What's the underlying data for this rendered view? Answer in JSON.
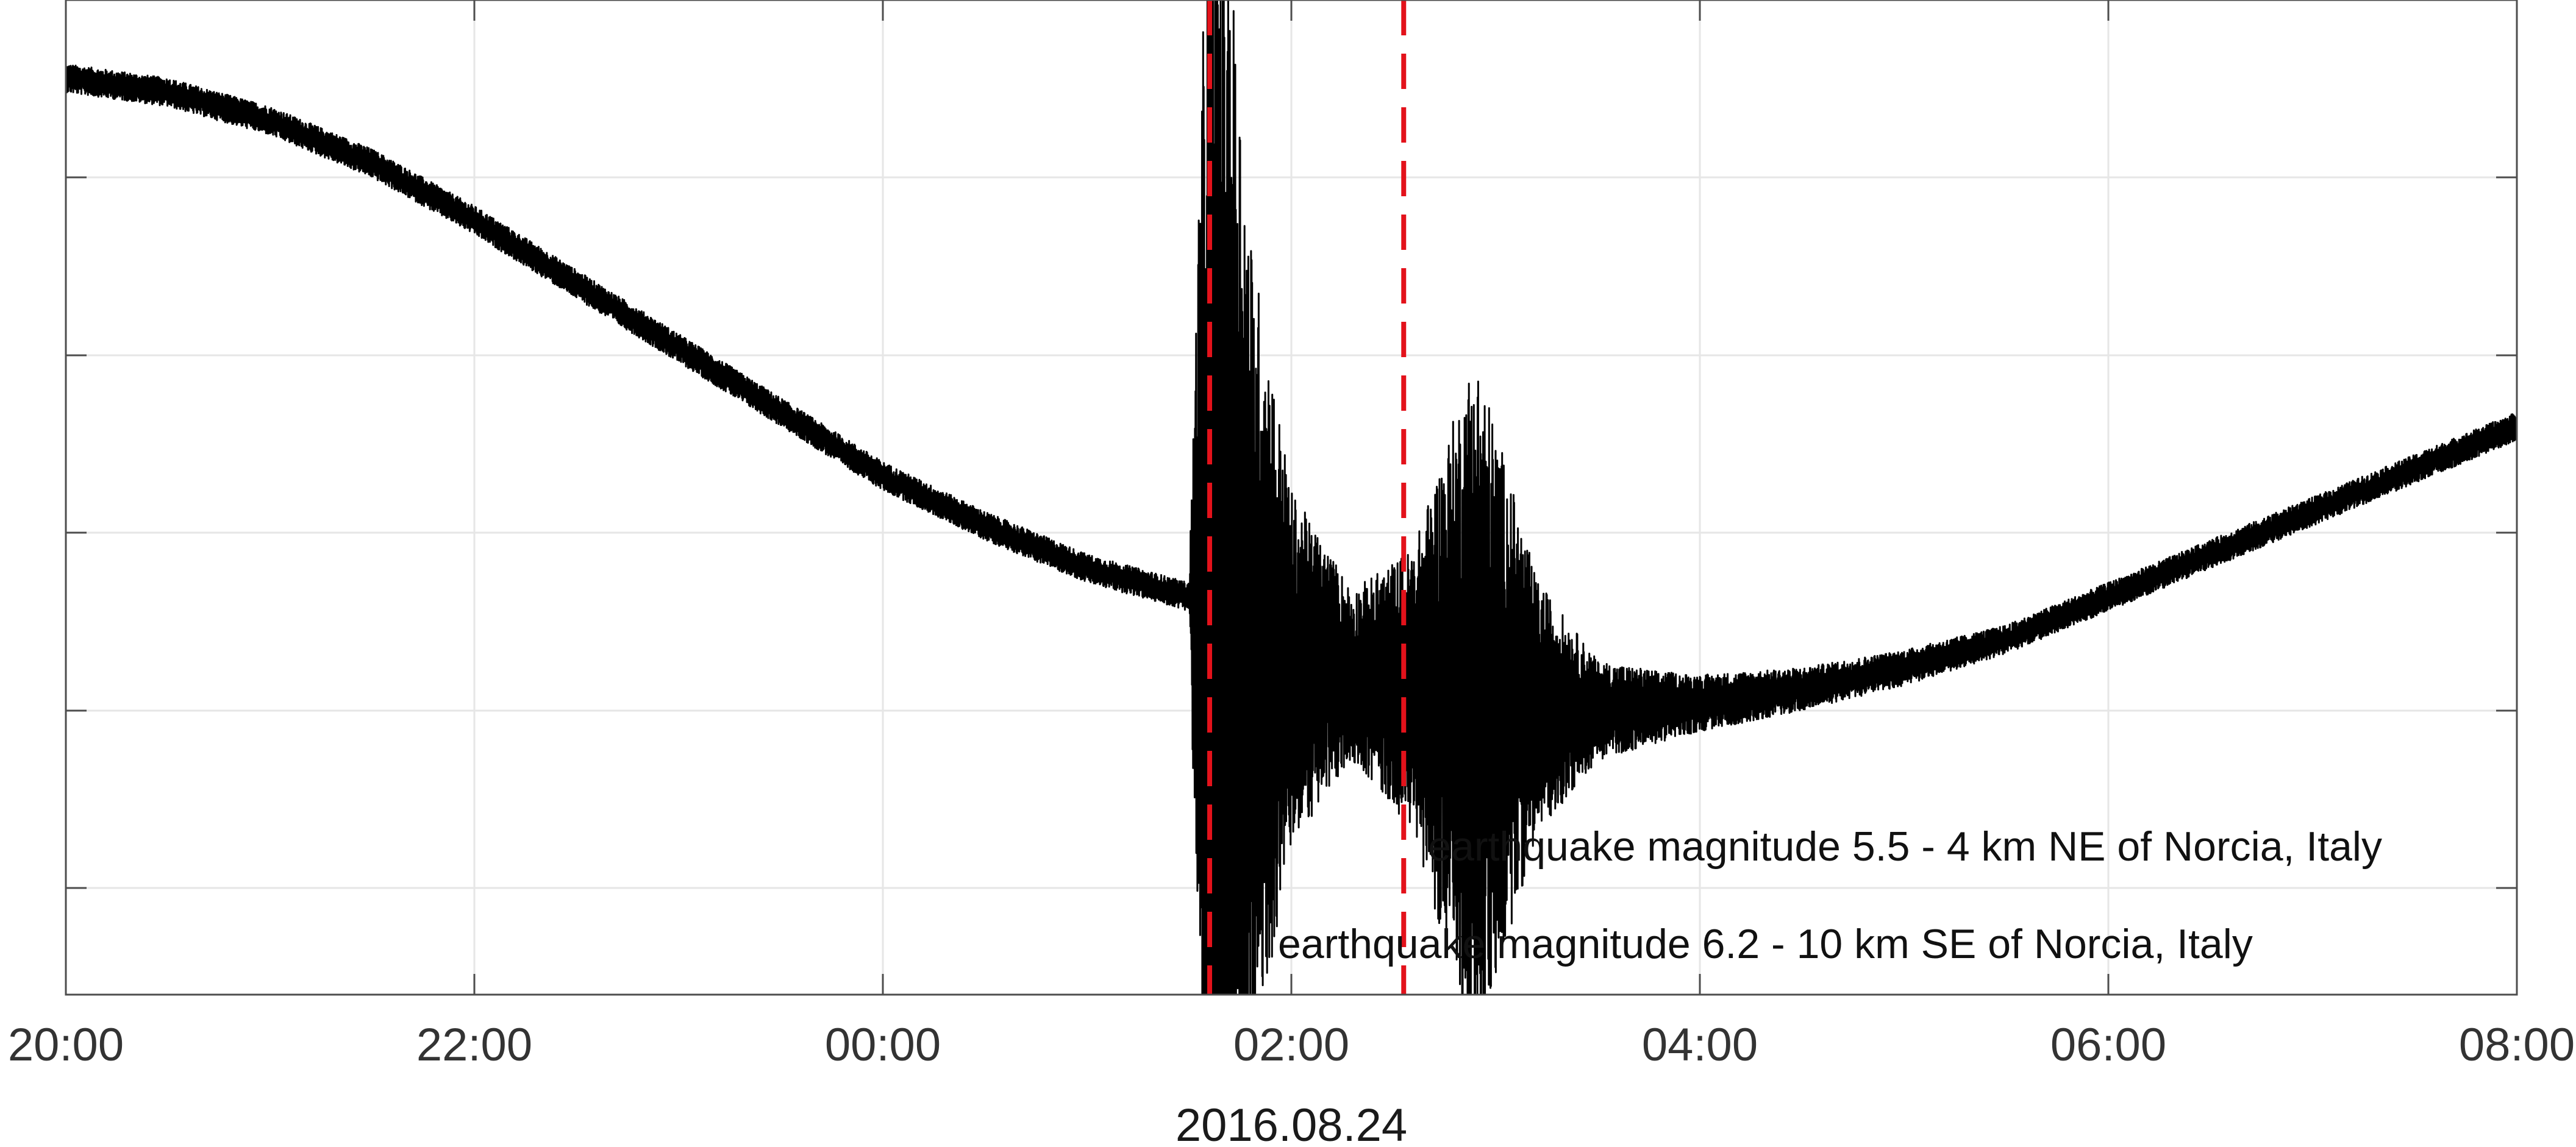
{
  "chart_data": {
    "type": "line",
    "title": "",
    "xlabel": "2016.08.24",
    "ylabel": "",
    "x_range": [
      "20:00",
      "08:00"
    ],
    "x_ticks": [
      "20:00",
      "22:00",
      "00:00",
      "02:00",
      "04:00",
      "06:00",
      "08:00"
    ],
    "y_ticks_count": 5,
    "grid": true,
    "legend": "none",
    "colors": {
      "trace": "#000000",
      "event_lines": "#e3121b"
    },
    "events": [
      {
        "time": "01:36",
        "label": "earthquake magnitude 6.2 - 10 km SE of Norcia, Italy"
      },
      {
        "time": "02:33",
        "label": "earthquake magnitude  5.5 - 4 km NE of Norcia, Italy"
      }
    ],
    "series": [
      {
        "x_hours_from_20": [
          0,
          0.5,
          1,
          1.5,
          2,
          2.5,
          3,
          3.5,
          4,
          4.5,
          5,
          5.5,
          5.6,
          5.7,
          5.8,
          6.0,
          6.3,
          6.6,
          6.9,
          7.2,
          7.5,
          7.8,
          8.0,
          8.5,
          9,
          9.5,
          10,
          10.5,
          11,
          11.5,
          12
        ],
        "y": [
          0.94,
          0.92,
          0.88,
          0.82,
          0.74,
          0.65,
          0.56,
          0.47,
          0.38,
          0.31,
          0.25,
          0.21,
          0.17,
          0.14,
          0.12,
          0.11,
          0.1,
          0.08,
          0.06,
          0.055,
          0.05,
          0.055,
          0.06,
          0.08,
          0.11,
          0.15,
          0.21,
          0.27,
          0.33,
          0.39,
          0.45
        ],
        "envelope": [
          0.02,
          0.02,
          0.02,
          0.02,
          0.02,
          0.02,
          0.02,
          0.02,
          0.02,
          0.02,
          0.02,
          0.02,
          1.2,
          1.0,
          0.6,
          0.25,
          0.12,
          0.2,
          0.5,
          0.18,
          0.07,
          0.05,
          0.04,
          0.03,
          0.025,
          0.02,
          0.02,
          0.02,
          0.02,
          0.02,
          0.02
        ]
      }
    ]
  }
}
